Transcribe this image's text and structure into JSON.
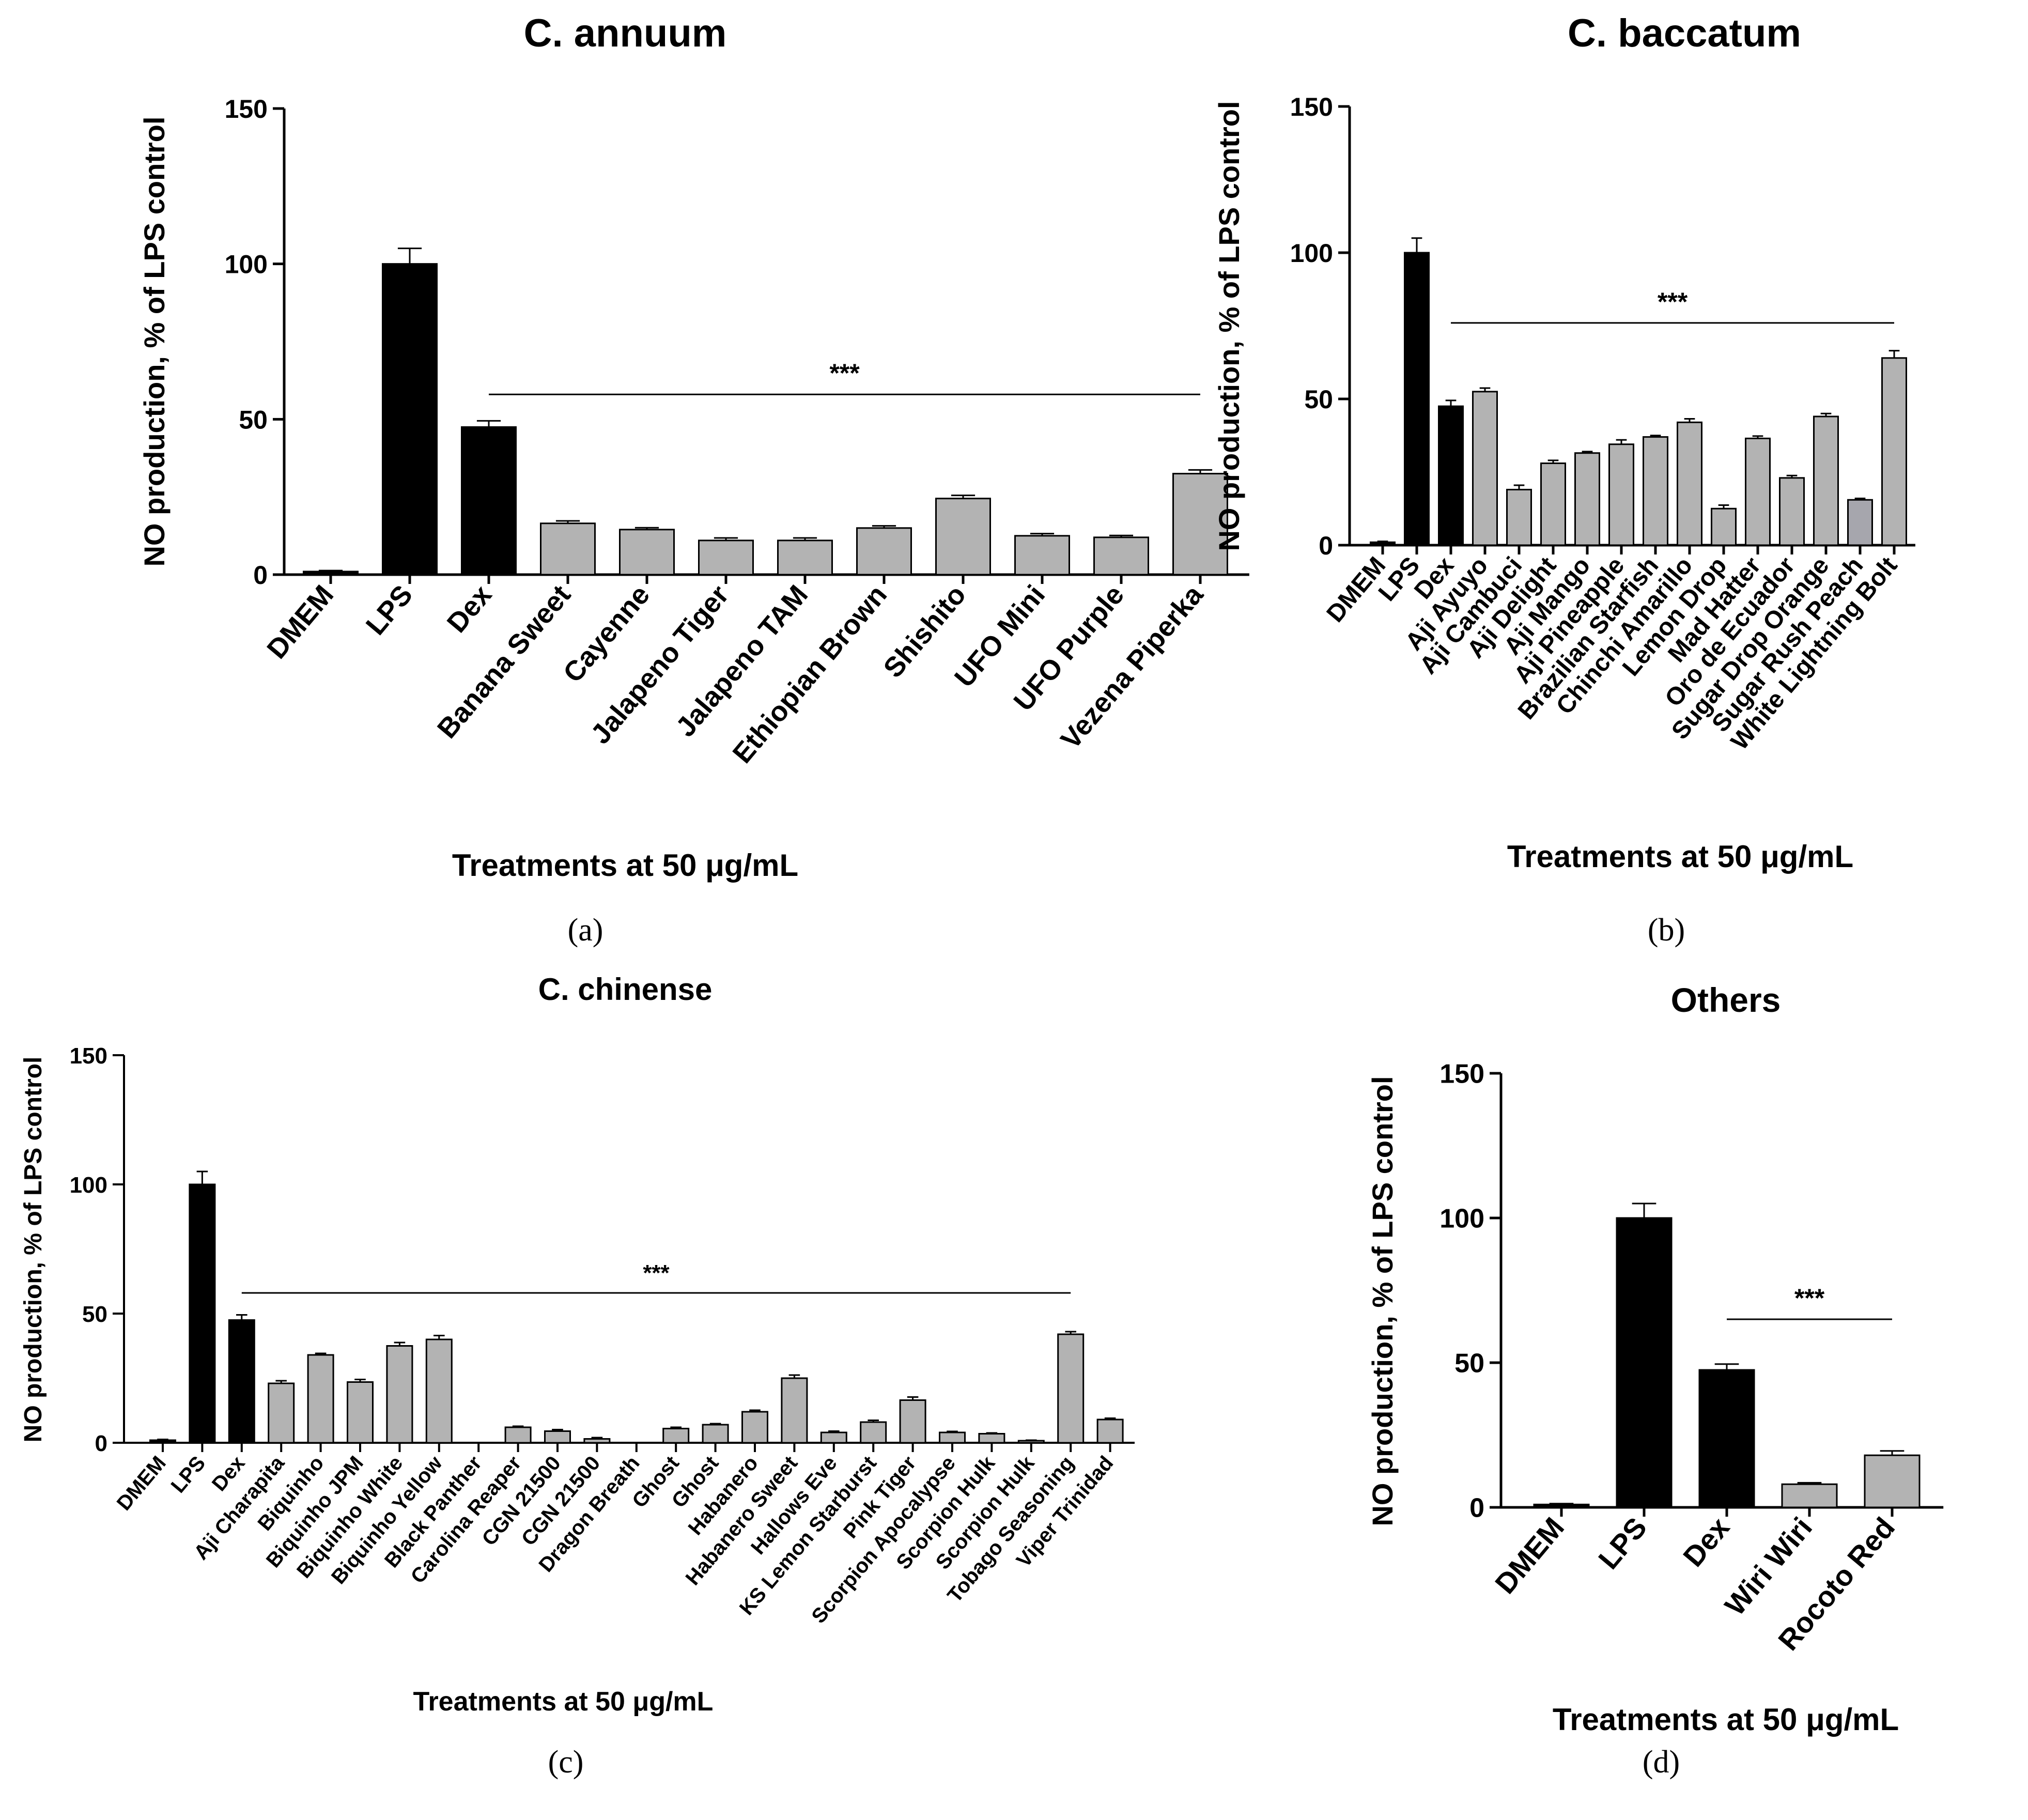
{
  "colors": {
    "control": "#000000",
    "sample": "#b3b3b3",
    "sample_alt": "#a6a6ad",
    "axis": "#000000"
  },
  "chart_data": [
    {
      "id": "a",
      "type": "bar",
      "caption": "(a)",
      "title": "C. annuum",
      "xlabel": "Treatments at 50 μg/mL",
      "ylabel": "NO production, % of LPS control",
      "ylim": [
        0,
        150
      ],
      "yticks": [
        0,
        50,
        100,
        150
      ],
      "categories": [
        "DMEM",
        "LPS",
        "Dex",
        "Banana Sweet",
        "Cayenne",
        "Jalapeno Tiger",
        "Jalapeno TAM",
        "Ethiopian Brown",
        "Shishito",
        "UFO Mini",
        "UFO Purple",
        "Vezena Piperka"
      ],
      "values": [
        1,
        100,
        47.5,
        16.5,
        14.5,
        11,
        11,
        15,
        24.5,
        12.5,
        12,
        32.5
      ],
      "errors": [
        0.3,
        5,
        2,
        0.8,
        0.6,
        0.8,
        0.8,
        0.7,
        1,
        0.7,
        0.6,
        1.2
      ],
      "groups": [
        "control",
        "control",
        "control",
        "sample",
        "sample",
        "sample",
        "sample",
        "sample",
        "sample",
        "sample",
        "sample",
        "sample"
      ],
      "significance": {
        "label": "***",
        "from": "Dex",
        "to": "Vezena Piperka",
        "y": 58
      }
    },
    {
      "id": "b",
      "type": "bar",
      "caption": "(b)",
      "title": "C. baccatum",
      "xlabel": "Treatments at 50 μg/mL",
      "ylabel": "NO production, % of LPS control",
      "ylim": [
        0,
        150
      ],
      "yticks": [
        0,
        50,
        100,
        150
      ],
      "categories": [
        "DMEM",
        "LPS",
        "Dex",
        "Aji Ayuyo",
        "Aji Cambuci",
        "Aji Delight",
        "Aji Mango",
        "Aji Pineapple",
        "Brazilian Starfish",
        "Chinchi Amarillo",
        "Lemon Drop",
        "Mad Hatter",
        "Oro de Ecuador",
        "Sugar Drop Orange",
        "Sugar Rush Peach",
        "White Lightning Bolt"
      ],
      "values": [
        1,
        100,
        47.5,
        52.5,
        19,
        28,
        31.5,
        34.5,
        37,
        42,
        12.5,
        36.5,
        23,
        44,
        15.5,
        64
      ],
      "errors": [
        0.3,
        5,
        2,
        1.2,
        1.5,
        1,
        0.5,
        1.5,
        0.5,
        1.2,
        1.2,
        0.8,
        0.8,
        1,
        0.5,
        2.5
      ],
      "groups": [
        "control",
        "control",
        "control",
        "sample",
        "sample",
        "sample",
        "sample",
        "sample",
        "sample",
        "sample",
        "sample",
        "sample",
        "sample",
        "sample",
        "sample_alt",
        "sample"
      ],
      "significance": {
        "label": "***",
        "from": "Dex",
        "to": "White Lightning Bolt",
        "y": 76
      }
    },
    {
      "id": "c",
      "type": "bar",
      "caption": "(c)",
      "title": "C. chinense",
      "xlabel": "Treatments at 50 μg/mL",
      "ylabel": "NO production, % of LPS control",
      "ylim": [
        0,
        150
      ],
      "yticks": [
        0,
        50,
        100,
        150
      ],
      "categories": [
        "DMEM",
        "LPS",
        "Dex",
        "Aji Charapita",
        "Biquinho",
        "Biquinho JPM",
        "Biquinho White",
        "Biquinho Yellow",
        "Black Panther",
        "Carolina Reaper",
        "CGN 21500",
        "CGN 21500",
        "Dragon Breath",
        "Ghost",
        "Ghost",
        "Habanero",
        "Habanero Sweet",
        "Hallows Eve",
        "KS Lemon Starburst",
        "Pink Tiger",
        "Scorpion Apocalypse",
        "Scorpion Hulk",
        "Scorpion Hulk",
        "Tobago Seasoning",
        "Viper Trinidad"
      ],
      "values": [
        1,
        100,
        47.5,
        23,
        34,
        23.5,
        37.5,
        40,
        0,
        6,
        4.5,
        1.5,
        0,
        5.5,
        7,
        12,
        25,
        4,
        8,
        16.5,
        4,
        3.5,
        0.8,
        42,
        9
      ],
      "errors": [
        0.3,
        5,
        2,
        1,
        0.6,
        1,
        1.3,
        1.5,
        0,
        0.4,
        0.6,
        0.5,
        0,
        0.5,
        0.4,
        0.6,
        1.2,
        0.5,
        0.7,
        1.2,
        0.4,
        0.3,
        0.2,
        1,
        0.5
      ],
      "groups": [
        "control",
        "control",
        "control",
        "sample",
        "sample",
        "sample",
        "sample",
        "sample",
        "sample",
        "sample",
        "sample",
        "sample",
        "sample",
        "sample",
        "sample",
        "sample",
        "sample",
        "sample",
        "sample",
        "sample",
        "sample",
        "sample",
        "sample",
        "sample",
        "sample"
      ],
      "significance": {
        "label": "***",
        "from": "Dex",
        "to": "Tobago Seasoning",
        "y": 58
      }
    },
    {
      "id": "d",
      "type": "bar",
      "caption": "(d)",
      "title": "Others",
      "xlabel": "Treatments at 50 μg/mL",
      "ylabel": "NO production, % of LPS control",
      "ylim": [
        0,
        150
      ],
      "yticks": [
        0,
        50,
        100,
        150
      ],
      "categories": [
        "DMEM",
        "LPS",
        "Dex",
        "Wiri Wiri",
        "Rocoto Red"
      ],
      "values": [
        1,
        100,
        47.5,
        8,
        18
      ],
      "errors": [
        0.3,
        5,
        2,
        0.5,
        1.5
      ],
      "groups": [
        "control",
        "control",
        "control",
        "sample",
        "sample"
      ],
      "significance": {
        "label": "***",
        "from": "Dex",
        "to": "Rocoto Red",
        "y": 65
      }
    }
  ]
}
